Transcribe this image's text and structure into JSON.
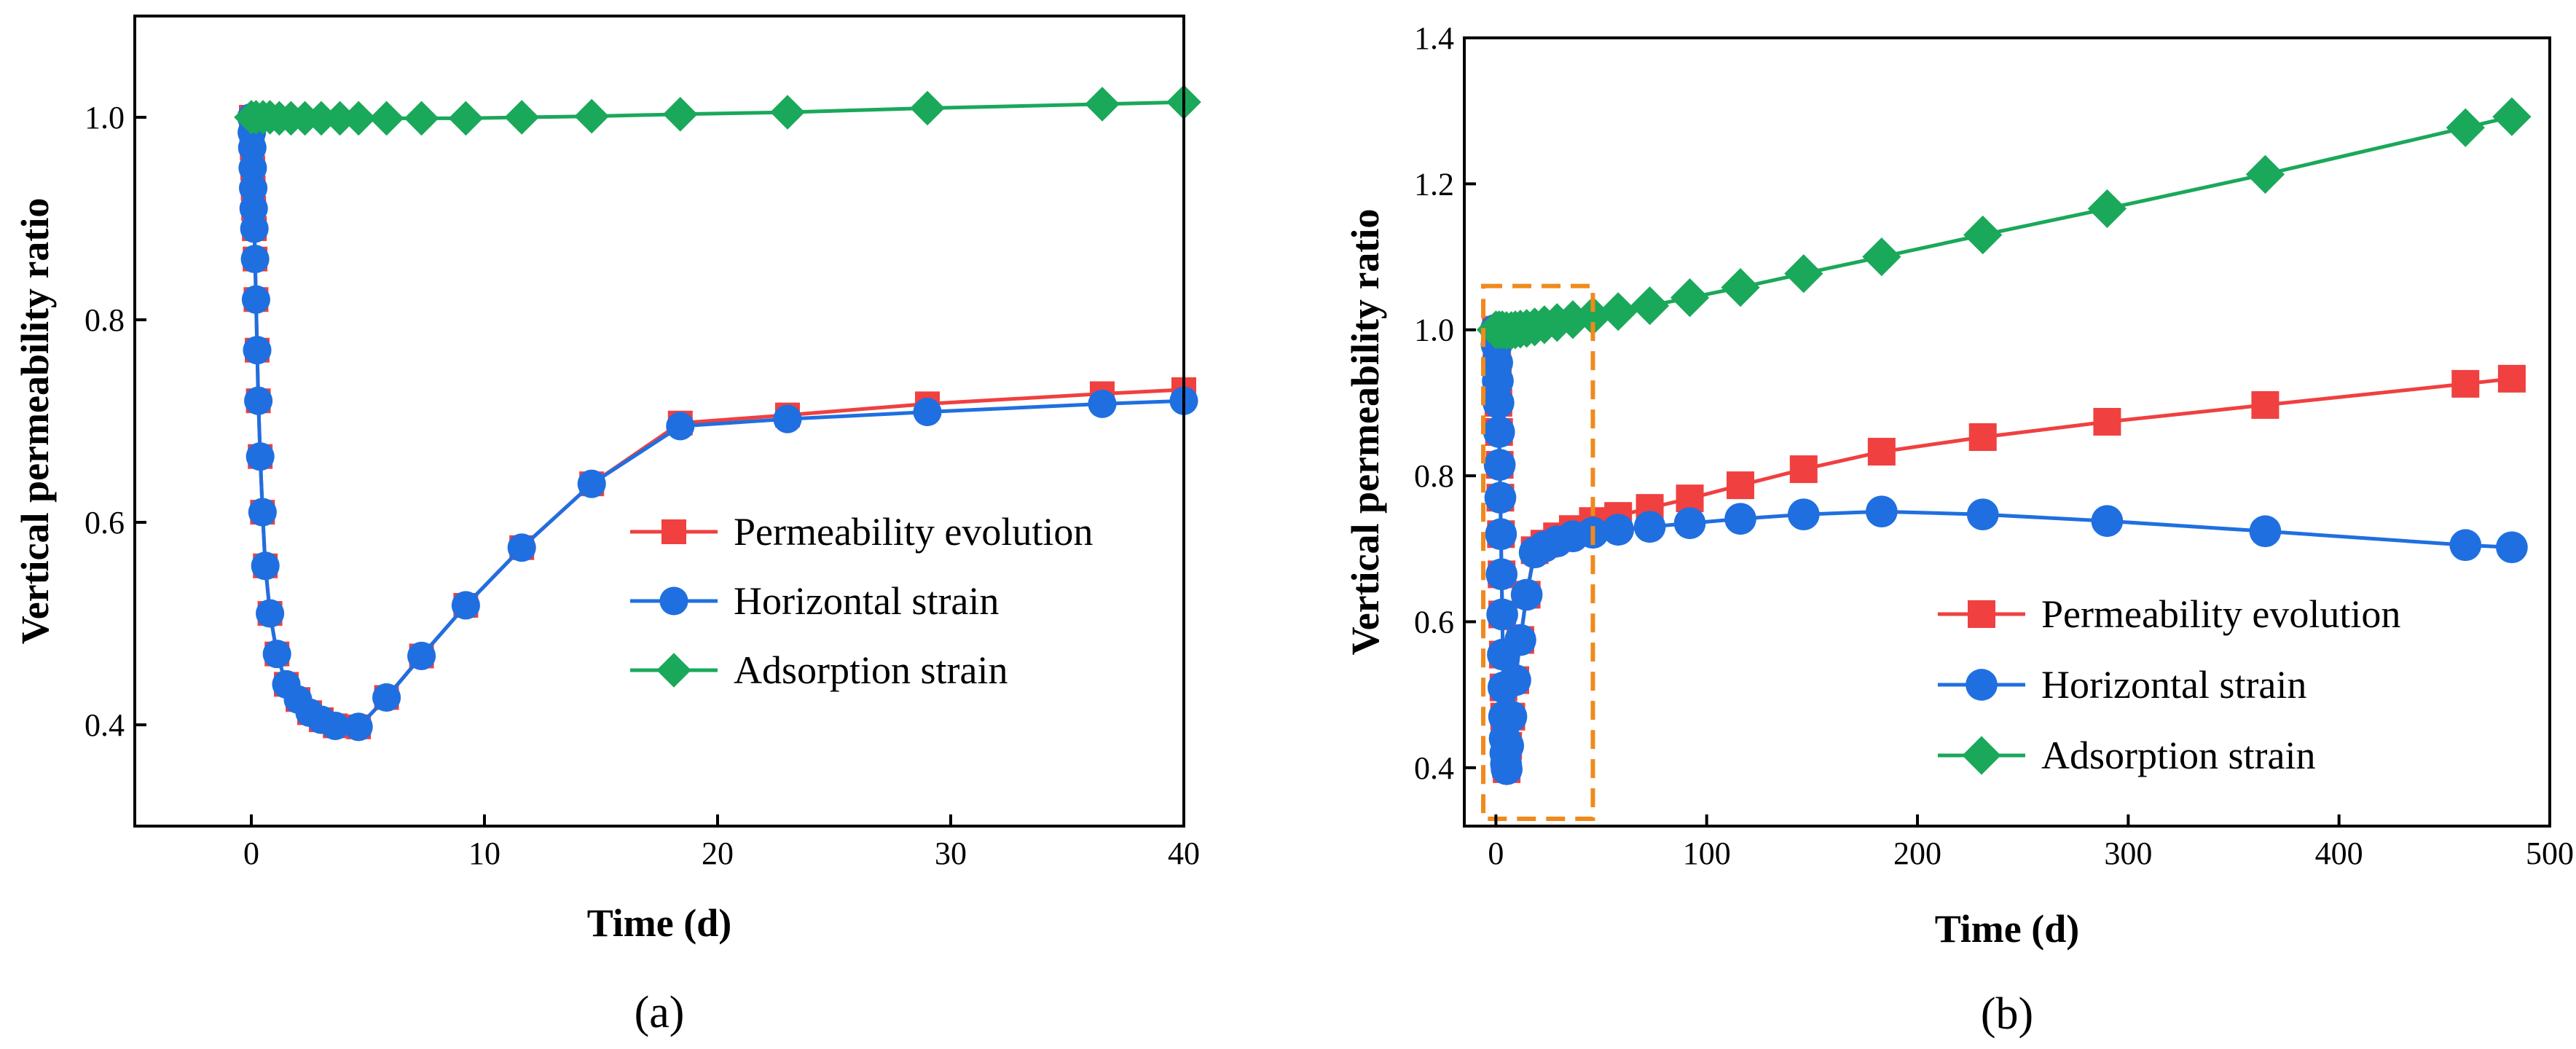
{
  "chart_data": [
    {
      "type": "line",
      "panel_label": "(a)",
      "xlabel": "Time (d)",
      "ylabel": "Vertical permeability ratio",
      "xlim": [
        -5,
        40
      ],
      "ylim": [
        0.3,
        1.1
      ],
      "xticks": [
        0,
        10,
        20,
        30,
        40
      ],
      "xtick_labels": [
        "0",
        "10",
        "20",
        "30",
        "40"
      ],
      "yticks": [
        0.4,
        0.6,
        0.8,
        1.0
      ],
      "ytick_labels": [
        "0.4",
        "0.6",
        "0.8",
        "1.0"
      ],
      "grid": false,
      "legend_position": "center-right",
      "series": [
        {
          "name": "Permeability evolution",
          "color": "#f04040",
          "marker": "square",
          "points": [
            [
              0,
              1.0
            ],
            [
              0.02,
              0.985
            ],
            [
              0.04,
              0.97
            ],
            [
              0.06,
              0.95
            ],
            [
              0.08,
              0.93
            ],
            [
              0.1,
              0.91
            ],
            [
              0.13,
              0.89
            ],
            [
              0.16,
              0.86
            ],
            [
              0.2,
              0.82
            ],
            [
              0.25,
              0.77
            ],
            [
              0.3,
              0.72
            ],
            [
              0.38,
              0.665
            ],
            [
              0.48,
              0.61
            ],
            [
              0.6,
              0.557
            ],
            [
              0.8,
              0.51
            ],
            [
              1.1,
              0.47
            ],
            [
              1.5,
              0.44
            ],
            [
              2.0,
              0.425
            ],
            [
              2.5,
              0.412
            ],
            [
              3.0,
              0.405
            ],
            [
              3.6,
              0.399
            ],
            [
              4.6,
              0.398
            ],
            [
              5.8,
              0.427
            ],
            [
              7.3,
              0.468
            ],
            [
              9.2,
              0.518
            ],
            [
              11.6,
              0.575
            ],
            [
              14.6,
              0.638
            ],
            [
              18.4,
              0.698
            ],
            [
              23.0,
              0.706
            ],
            [
              29.0,
              0.717
            ],
            [
              36.5,
              0.727
            ],
            [
              40.0,
              0.731
            ]
          ]
        },
        {
          "name": "Horizontal strain",
          "color": "#1f6fe0",
          "marker": "circle",
          "points": [
            [
              0,
              1.0
            ],
            [
              0.02,
              0.985
            ],
            [
              0.04,
              0.97
            ],
            [
              0.06,
              0.95
            ],
            [
              0.08,
              0.93
            ],
            [
              0.1,
              0.91
            ],
            [
              0.13,
              0.89
            ],
            [
              0.16,
              0.86
            ],
            [
              0.2,
              0.82
            ],
            [
              0.25,
              0.77
            ],
            [
              0.3,
              0.72
            ],
            [
              0.38,
              0.665
            ],
            [
              0.48,
              0.61
            ],
            [
              0.6,
              0.557
            ],
            [
              0.8,
              0.51
            ],
            [
              1.1,
              0.47
            ],
            [
              1.5,
              0.44
            ],
            [
              2.0,
              0.425
            ],
            [
              2.5,
              0.412
            ],
            [
              3.0,
              0.405
            ],
            [
              3.6,
              0.399
            ],
            [
              4.6,
              0.398
            ],
            [
              5.8,
              0.427
            ],
            [
              7.3,
              0.468
            ],
            [
              9.2,
              0.518
            ],
            [
              11.6,
              0.575
            ],
            [
              14.6,
              0.638
            ],
            [
              18.4,
              0.695
            ],
            [
              23.0,
              0.702
            ],
            [
              29.0,
              0.709
            ],
            [
              36.5,
              0.717
            ],
            [
              40.0,
              0.72
            ]
          ]
        },
        {
          "name": "Adsorption strain",
          "color": "#1aa85a",
          "marker": "diamond",
          "points": [
            [
              0,
              1.0
            ],
            [
              0.2,
              1.0
            ],
            [
              0.5,
              1.0
            ],
            [
              0.8,
              1.0
            ],
            [
              1.2,
              0.999
            ],
            [
              1.7,
              0.999
            ],
            [
              2.3,
              0.999
            ],
            [
              3.0,
              0.999
            ],
            [
              3.8,
              0.999
            ],
            [
              4.6,
              0.999
            ],
            [
              5.8,
              0.999
            ],
            [
              7.3,
              0.999
            ],
            [
              9.2,
              0.999
            ],
            [
              11.6,
              1.0
            ],
            [
              14.6,
              1.001
            ],
            [
              18.4,
              1.003
            ],
            [
              23.0,
              1.005
            ],
            [
              29.0,
              1.009
            ],
            [
              36.5,
              1.013
            ],
            [
              40.0,
              1.015
            ]
          ]
        }
      ]
    },
    {
      "type": "line",
      "panel_label": "(b)",
      "xlabel": "Time (d)",
      "ylabel": "Vertical permeability ratio",
      "xlim": [
        -15,
        500
      ],
      "ylim": [
        0.32,
        1.4
      ],
      "xticks": [
        0,
        100,
        200,
        300,
        400,
        500
      ],
      "xtick_labels": [
        "0",
        "100",
        "200",
        "300",
        "400",
        "500"
      ],
      "yticks": [
        0.4,
        0.6,
        0.8,
        1.0,
        1.2,
        1.4
      ],
      "ytick_labels": [
        "0.4",
        "0.6",
        "0.8",
        "1.0",
        "1.2",
        "1.4"
      ],
      "grid": false,
      "legend_position": "lower-right",
      "annotation": {
        "type": "dashed-box",
        "color": "#f08a1c",
        "x_range": [
          -6,
          46
        ],
        "y_range": [
          0.33,
          1.06
        ]
      },
      "series": [
        {
          "name": "Permeability evolution",
          "color": "#f04040",
          "marker": "square",
          "points": [
            [
              0,
              1.0
            ],
            [
              0.3,
              0.98
            ],
            [
              0.6,
              0.955
            ],
            [
              0.9,
              0.93
            ],
            [
              1.2,
              0.9
            ],
            [
              1.5,
              0.86
            ],
            [
              1.8,
              0.815
            ],
            [
              2.1,
              0.77
            ],
            [
              2.4,
              0.72
            ],
            [
              2.7,
              0.665
            ],
            [
              3.0,
              0.61
            ],
            [
              3.3,
              0.555
            ],
            [
              3.6,
              0.51
            ],
            [
              3.9,
              0.47
            ],
            [
              4.2,
              0.44
            ],
            [
              4.5,
              0.42
            ],
            [
              4.8,
              0.405
            ],
            [
              5.1,
              0.398
            ],
            [
              5.8,
              0.43
            ],
            [
              7.3,
              0.47
            ],
            [
              9.2,
              0.52
            ],
            [
              11.6,
              0.575
            ],
            [
              14.6,
              0.637
            ],
            [
              18.4,
              0.698
            ],
            [
              23.0,
              0.707
            ],
            [
              29.0,
              0.717
            ],
            [
              36.5,
              0.727
            ],
            [
              46.0,
              0.738
            ],
            [
              58.0,
              0.745
            ],
            [
              73.0,
              0.756
            ],
            [
              92.0,
              0.769
            ],
            [
              116.0,
              0.787
            ],
            [
              146.0,
              0.809
            ],
            [
              183.0,
              0.833
            ],
            [
              231.0,
              0.853
            ],
            [
              290.0,
              0.874
            ],
            [
              365.0,
              0.897
            ],
            [
              460.0,
              0.926
            ],
            [
              482.0,
              0.933
            ]
          ]
        },
        {
          "name": "Horizontal strain",
          "color": "#1f6fe0",
          "marker": "circle",
          "points": [
            [
              0,
              1.0
            ],
            [
              0.3,
              0.98
            ],
            [
              0.6,
              0.955
            ],
            [
              0.9,
              0.93
            ],
            [
              1.2,
              0.9
            ],
            [
              1.5,
              0.86
            ],
            [
              1.8,
              0.815
            ],
            [
              2.1,
              0.77
            ],
            [
              2.4,
              0.72
            ],
            [
              2.7,
              0.665
            ],
            [
              3.0,
              0.61
            ],
            [
              3.3,
              0.555
            ],
            [
              3.6,
              0.51
            ],
            [
              3.9,
              0.47
            ],
            [
              4.2,
              0.44
            ],
            [
              4.5,
              0.42
            ],
            [
              4.8,
              0.405
            ],
            [
              5.1,
              0.398
            ],
            [
              5.8,
              0.43
            ],
            [
              7.3,
              0.47
            ],
            [
              9.2,
              0.52
            ],
            [
              11.6,
              0.575
            ],
            [
              14.6,
              0.637
            ],
            [
              18.4,
              0.695
            ],
            [
              23.0,
              0.703
            ],
            [
              29.0,
              0.71
            ],
            [
              36.5,
              0.717
            ],
            [
              46.0,
              0.722
            ],
            [
              58.0,
              0.726
            ],
            [
              73.0,
              0.73
            ],
            [
              92.0,
              0.735
            ],
            [
              116.0,
              0.741
            ],
            [
              146.0,
              0.747
            ],
            [
              183.0,
              0.751
            ],
            [
              231.0,
              0.747
            ],
            [
              290.0,
              0.738
            ],
            [
              365.0,
              0.724
            ],
            [
              460.0,
              0.705
            ],
            [
              482.0,
              0.702
            ]
          ]
        },
        {
          "name": "Adsorption strain",
          "color": "#1aa85a",
          "marker": "diamond",
          "points": [
            [
              0,
              1.0
            ],
            [
              1.5,
              1.0
            ],
            [
              3.0,
              1.0
            ],
            [
              5.0,
              0.999
            ],
            [
              7.3,
              0.999
            ],
            [
              9.2,
              1.0
            ],
            [
              11.6,
              1.001
            ],
            [
              14.6,
              1.002
            ],
            [
              18.4,
              1.004
            ],
            [
              23.0,
              1.007
            ],
            [
              29.0,
              1.01
            ],
            [
              36.5,
              1.014
            ],
            [
              46.0,
              1.019
            ],
            [
              58.0,
              1.025
            ],
            [
              73.0,
              1.033
            ],
            [
              92.0,
              1.044
            ],
            [
              116.0,
              1.058
            ],
            [
              146.0,
              1.077
            ],
            [
              183.0,
              1.1
            ],
            [
              231.0,
              1.13
            ],
            [
              290.0,
              1.166
            ],
            [
              365.0,
              1.213
            ],
            [
              460.0,
              1.277
            ],
            [
              482.0,
              1.292
            ]
          ]
        }
      ]
    }
  ]
}
